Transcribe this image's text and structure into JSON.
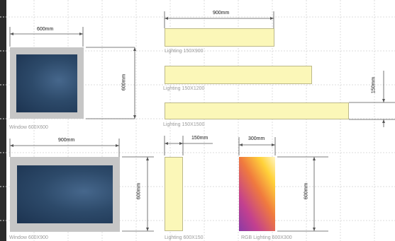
{
  "window_600x600": {
    "caption": "Window 600X600",
    "width_label": "600mm",
    "height_label": "600mm"
  },
  "lighting_150x900": {
    "caption": "Lighting 150X900",
    "width_label": "900mm"
  },
  "lighting_150x1200": {
    "caption": "Lighting 150X1200"
  },
  "lighting_150x1500": {
    "caption": "Lighting 150X1500",
    "height_label": "150mm"
  },
  "window_600x900": {
    "caption": "Window 600X900",
    "width_label": "900mm",
    "height_label": "600mm"
  },
  "lighting_600x150": {
    "caption": "Lighting 600X150",
    "width_label": "150mm"
  },
  "rgb_lighting_600x300": {
    "caption": "RGB Lighting 600X300",
    "width_label": "300mm",
    "height_label": "600mm"
  },
  "colors": {
    "frame": "#c6c6c6",
    "glass": "#2d4a6a",
    "lighting_panel": "#fbf7b8",
    "grid": "#dcdcdc"
  }
}
